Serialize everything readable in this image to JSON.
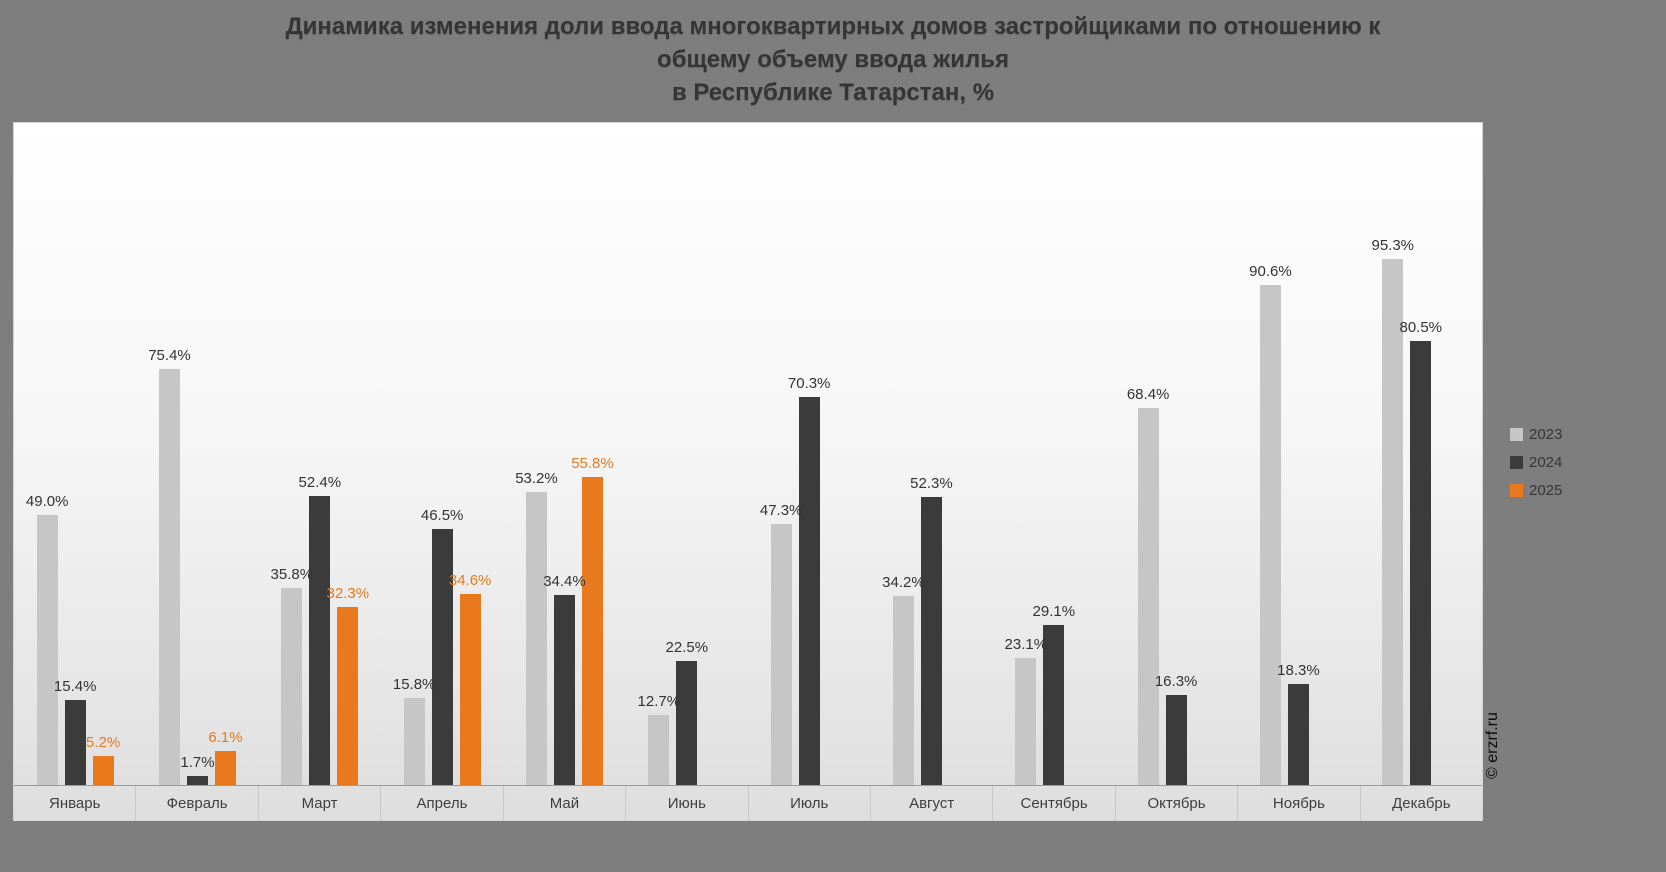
{
  "page": {
    "background": "#7e7e7e"
  },
  "title": {
    "line1": "Динамика изменения доли ввода многоквартирных домов застройщиками по отношению к",
    "line2": "общему объему ввода жилья",
    "line3": "в Республике Татарстан, %"
  },
  "watermark": "© erzrf.ru",
  "legend": {
    "items": [
      {
        "label": "2023",
        "color": "#c6c6c6"
      },
      {
        "label": "2024",
        "color": "#3b3b3b"
      },
      {
        "label": "2025",
        "color": "#e8791d"
      }
    ]
  },
  "chart_data": {
    "type": "bar",
    "title": "Динамика изменения доли ввода многоквартирных домов застройщиками по отношению к общему объему ввода жилья в Республике Татарстан, %",
    "categories": [
      "Январь",
      "Февраль",
      "Март",
      "Апрель",
      "Май",
      "Июнь",
      "Июль",
      "Август",
      "Сентябрь",
      "Октябрь",
      "Ноябрь",
      "Декабрь"
    ],
    "series": [
      {
        "name": "2023",
        "color": "#c6c6c6",
        "label_color": "#333333",
        "values": [
          49.0,
          75.4,
          35.8,
          15.8,
          53.2,
          12.7,
          47.3,
          34.2,
          23.1,
          68.4,
          90.6,
          95.3
        ]
      },
      {
        "name": "2024",
        "color": "#3b3b3b",
        "label_color": "#333333",
        "values": [
          15.4,
          1.7,
          52.4,
          46.5,
          34.4,
          22.5,
          70.3,
          52.3,
          29.1,
          16.3,
          18.3,
          80.5
        ]
      },
      {
        "name": "2025",
        "color": "#e8791d",
        "label_color": "#e8791d",
        "values": [
          5.2,
          6.1,
          32.3,
          34.6,
          55.8,
          null,
          null,
          null,
          null,
          null,
          null,
          null
        ]
      }
    ],
    "ylim": [
      0,
      120
    ],
    "value_suffix": "%",
    "legend_position": "right",
    "grid": false,
    "xlabel": "",
    "ylabel": ""
  }
}
